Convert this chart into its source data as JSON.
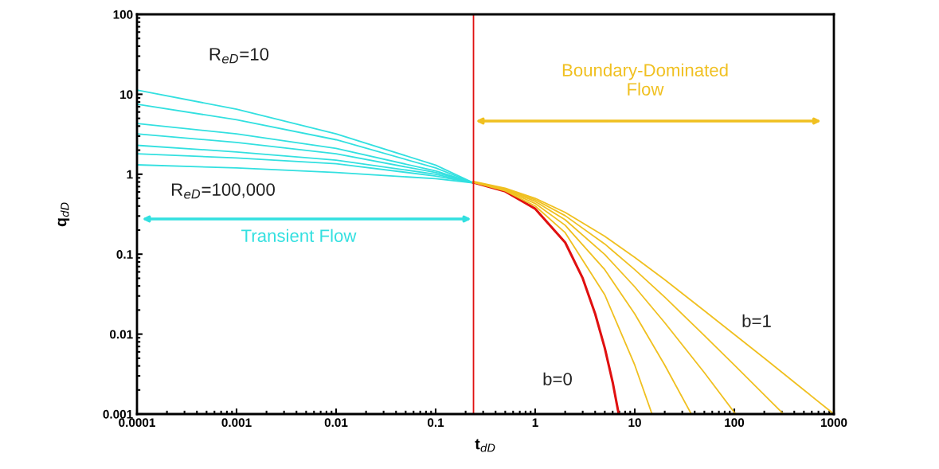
{
  "chart_data": {
    "type": "line",
    "xlabel": "t$_{dD}$",
    "ylabel": "q$_{dD}$",
    "log": "xy",
    "grid": false,
    "marker": "none",
    "line_style": "solid",
    "xlim": [
      0.0001,
      1000
    ],
    "ylim": [
      0.001,
      100
    ],
    "xticks": [
      0.0001,
      0.001,
      0.01,
      0.1,
      1,
      10,
      100,
      1000
    ],
    "yticks": [
      0.001,
      0.01,
      0.1,
      1,
      10,
      100
    ],
    "series": [
      {
        "color": "#33e0e0",
        "x": [
          0.0001,
          0.001,
          0.01,
          0.1,
          0.24
        ],
        "values": [
          11.3,
          6.5,
          3.2,
          1.3,
          0.78
        ]
      },
      {
        "color": "#33e0e0",
        "x": [
          0.0001,
          0.001,
          0.01,
          0.1,
          0.24
        ],
        "values": [
          7.5,
          4.8,
          2.7,
          1.2,
          0.78
        ]
      },
      {
        "color": "#33e0e0",
        "x": [
          0.0001,
          0.001,
          0.01,
          0.1,
          0.24
        ],
        "values": [
          4.3,
          3.2,
          2.1,
          1.1,
          0.78
        ]
      },
      {
        "color": "#33e0e0",
        "x": [
          0.0001,
          0.001,
          0.01,
          0.1,
          0.24
        ],
        "values": [
          3.2,
          2.5,
          1.8,
          1.05,
          0.78
        ]
      },
      {
        "color": "#33e0e0",
        "x": [
          0.0001,
          0.001,
          0.01,
          0.1,
          0.24
        ],
        "values": [
          2.3,
          1.9,
          1.5,
          1.0,
          0.78
        ]
      },
      {
        "color": "#33e0e0",
        "x": [
          0.0001,
          0.001,
          0.01,
          0.1,
          0.24
        ],
        "values": [
          1.8,
          1.6,
          1.35,
          0.95,
          0.78
        ]
      },
      {
        "color": "#33e0e0",
        "x": [
          0.0001,
          0.001,
          0.01,
          0.1,
          0.24
        ],
        "values": [
          1.31,
          1.2,
          1.05,
          0.88,
          0.78
        ]
      },
      {
        "color": "#e01010",
        "x": [
          0.24,
          0.5,
          1,
          2,
          3,
          4,
          5,
          6,
          6.9
        ],
        "values": [
          0.79,
          0.61,
          0.37,
          0.14,
          0.05,
          0.018,
          0.0067,
          0.0025,
          0.001
        ]
      },
      {
        "color": "#f0c020",
        "x": [
          0.24,
          0.5,
          1,
          2,
          5,
          10,
          14.9
        ],
        "values": [
          0.79,
          0.62,
          0.4,
          0.186,
          0.031,
          0.0041,
          0.001
        ]
      },
      {
        "color": "#f0c020",
        "x": [
          0.24,
          0.5,
          1,
          2,
          5,
          10,
          20,
          37
        ],
        "values": [
          0.795,
          0.634,
          0.43,
          0.23,
          0.064,
          0.0179,
          0.0041,
          0.001
        ]
      },
      {
        "color": "#f0c020",
        "x": [
          0.24,
          0.5,
          1,
          2,
          5,
          10,
          20,
          50,
          103
        ],
        "values": [
          0.8,
          0.646,
          0.457,
          0.269,
          0.099,
          0.039,
          0.0139,
          0.0033,
          0.001
        ]
      },
      {
        "color": "#f0c020",
        "x": [
          0.24,
          0.5,
          1,
          2,
          5,
          10,
          20,
          50,
          100,
          312
        ],
        "values": [
          0.8,
          0.657,
          0.48,
          0.303,
          0.134,
          0.064,
          0.029,
          0.0096,
          0.0041,
          0.001
        ]
      },
      {
        "color": "#f0c020",
        "x": [
          0.24,
          0.5,
          1,
          2,
          5,
          10,
          20,
          50,
          100,
          200,
          500,
          1000
        ],
        "values": [
          0.81,
          0.667,
          0.5,
          0.333,
          0.167,
          0.091,
          0.048,
          0.0196,
          0.0099,
          0.005,
          0.002,
          0.001
        ]
      }
    ],
    "ref_lines": [
      {
        "axis": "x",
        "value": 0.24,
        "color": "#e01010"
      }
    ],
    "annotations": [
      "R$_{eD}$=10",
      "R$_{eD}$=100,000",
      "Transient Flow",
      "Boundary-Dominated\nFlow",
      "b=0",
      "b=1"
    ]
  }
}
